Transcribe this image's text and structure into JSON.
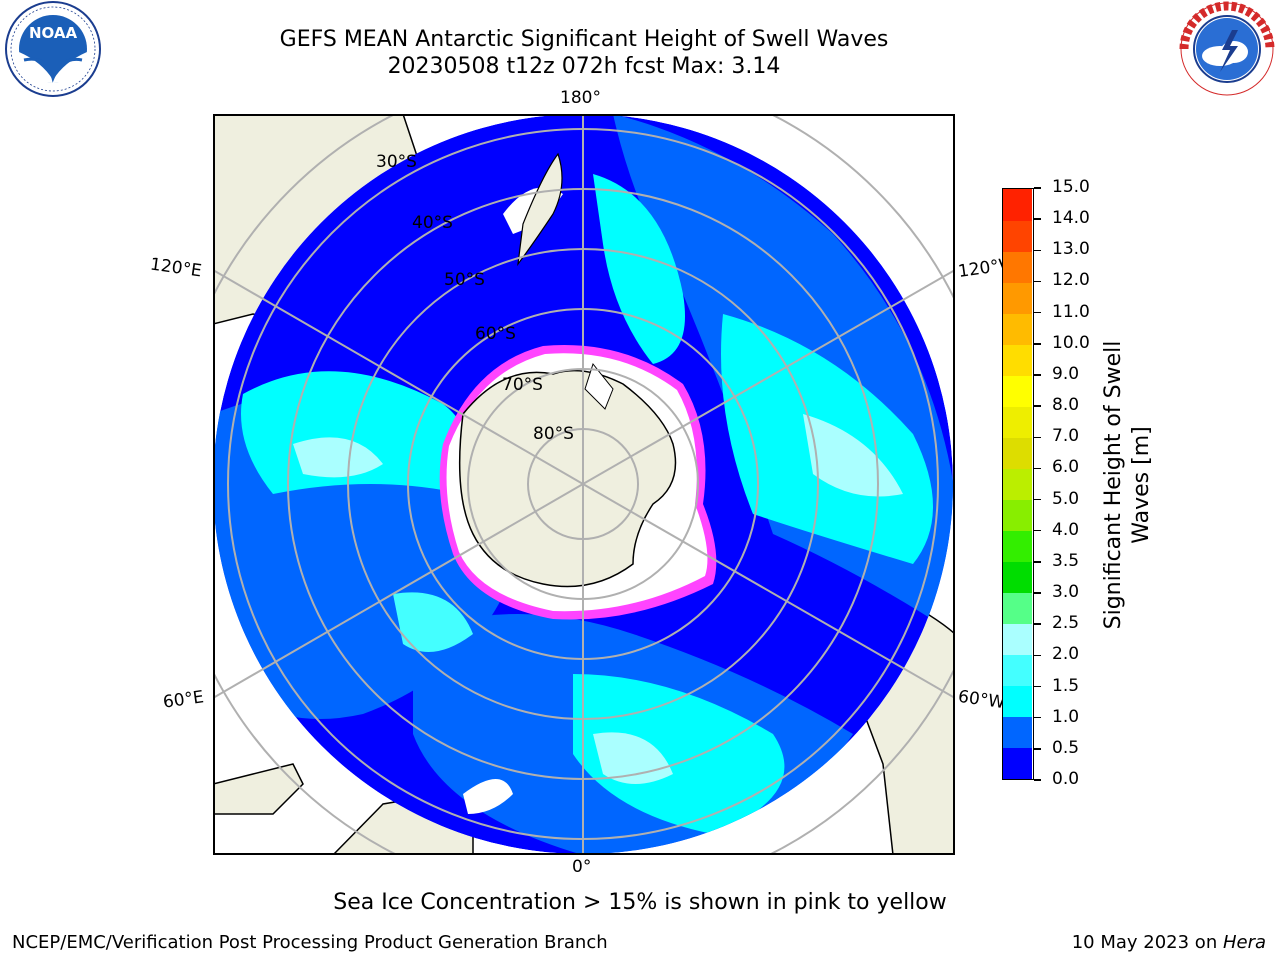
{
  "header": {
    "title_line1": "GEFS MEAN Antarctic Significant Height of Swell Waves",
    "title_line2": "20230508 t12z 072h fcst   Max: 3.14"
  },
  "logos": {
    "left": "NOAA",
    "left_ring_text": "NATIONAL OCEANIC AND ATMOSPHERIC ADMINISTRATION · U.S. DEPARTMENT OF COMMERCE",
    "right_ring_text": "NATIONAL WEATHER SERVICE"
  },
  "map": {
    "longitude_labels": {
      "top": "180°",
      "bottom": "0°",
      "left_upper": "120°E",
      "left_lower": "60°E",
      "right_upper": "120°W",
      "right_lower": "60°W"
    },
    "latitude_labels": [
      "30°S",
      "40°S",
      "50°S",
      "60°S",
      "70°S",
      "80°S"
    ],
    "colors": {
      "ocean_low": "#0000ff",
      "ocean_mid": "#0066ff",
      "ocean_1_5": "#00ffff",
      "ocean_2_0": "#44ffff",
      "ocean_2_5": "#aaffff",
      "land": "#efefdf",
      "ice_edge": "#ff44ff",
      "ice": "#ffffff",
      "grid": "#b0b0b0"
    }
  },
  "colorbar": {
    "label": "Significant Height of Swell Waves [m]",
    "ticks": [
      "0.0",
      "0.5",
      "1.0",
      "1.5",
      "2.0",
      "2.5",
      "3.0",
      "3.5",
      "4.0",
      "5.0",
      "6.0",
      "7.0",
      "8.0",
      "9.0",
      "10.0",
      "11.0",
      "12.0",
      "13.0",
      "14.0",
      "15.0"
    ],
    "colors": [
      "#0000ff",
      "#0066ff",
      "#00ffff",
      "#44ffff",
      "#aaffff",
      "#55ff88",
      "#00dd00",
      "#33ee00",
      "#88ee00",
      "#bbee00",
      "#dddd00",
      "#eeee00",
      "#ffff00",
      "#ffdd00",
      "#ffbb00",
      "#ff9900",
      "#ff7700",
      "#ff4400",
      "#ff2200"
    ]
  },
  "note": "Sea Ice Concentration > 15% is shown in pink to yellow",
  "footer": {
    "left": "NCEP/EMC/Verification Post Processing Product Generation Branch",
    "right_date": "10 May 2023 on ",
    "right_machine": "Hera"
  }
}
